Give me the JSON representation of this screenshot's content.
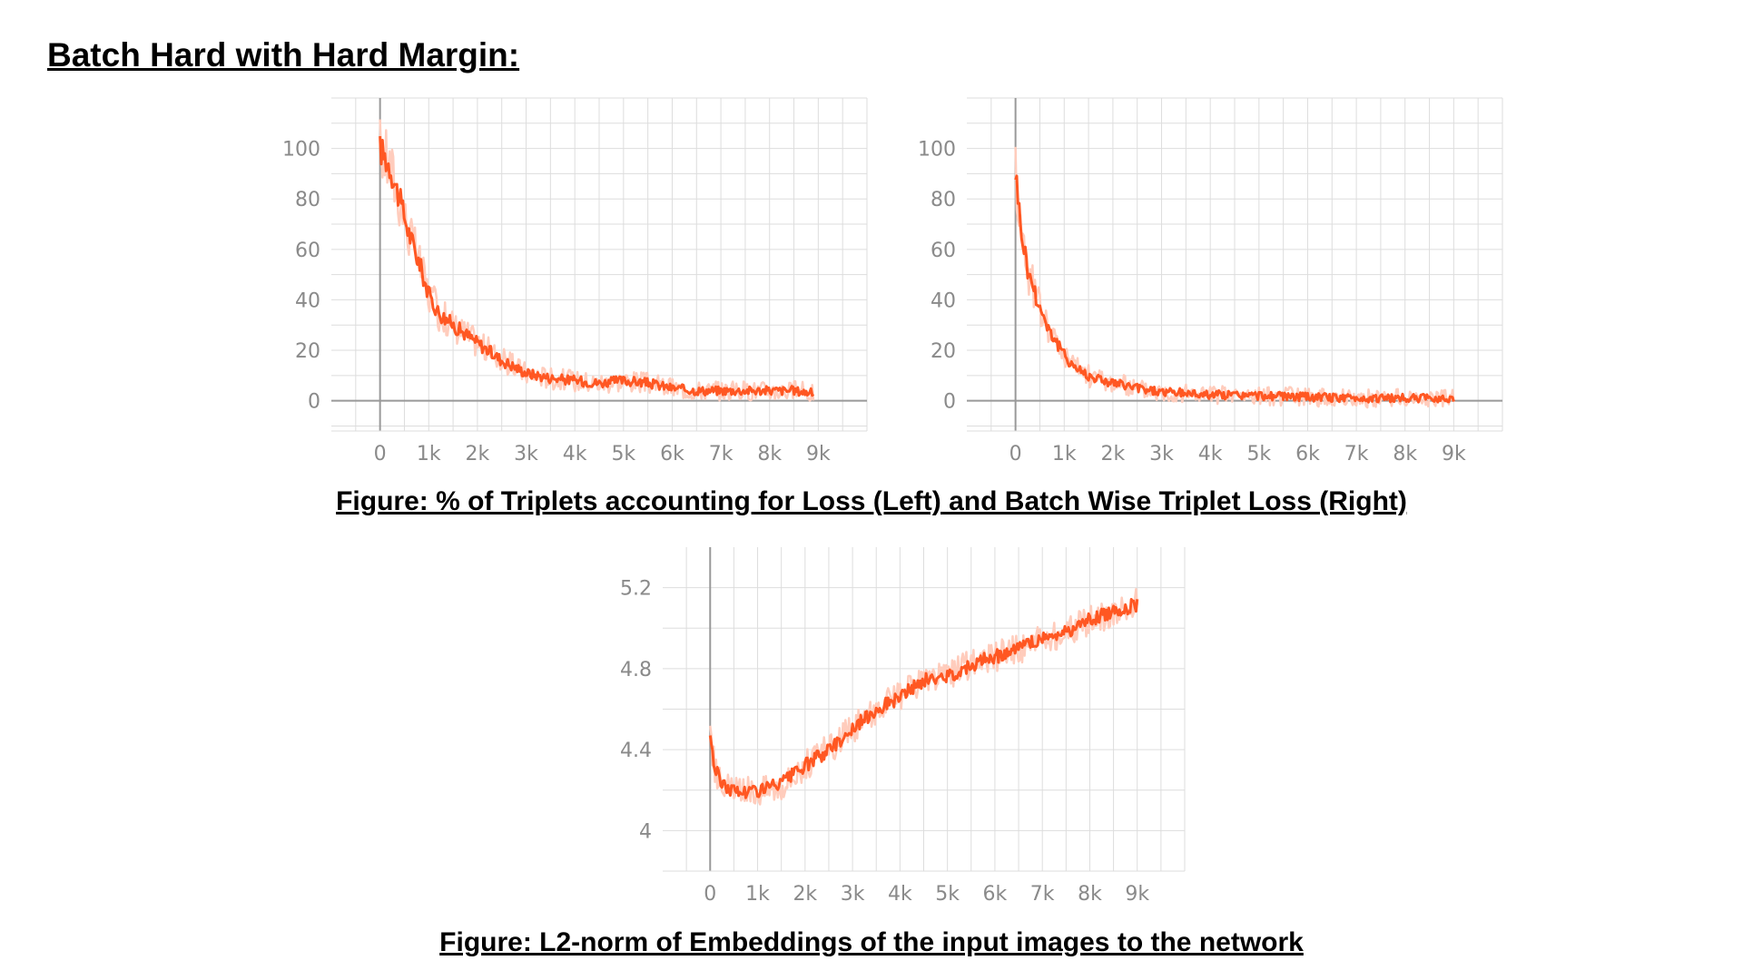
{
  "heading": "Batch Hard with Hard Margin:",
  "captions": {
    "top": "Figure: % of Triplets accounting for Loss (Left) and Batch Wise Triplet Loss (Right)",
    "bottom": "Figure: L2-norm of Embeddings of the input images to the network"
  },
  "colors": {
    "line": "#ff5722",
    "band": "#ffccbc",
    "grid": "#dddddd",
    "axis": "#999999",
    "tick_text": "#8a8a8a"
  },
  "chart_data": [
    {
      "type": "line",
      "title": "",
      "xlabel": "",
      "ylabel": "",
      "xlim": [
        -1000,
        10000
      ],
      "ylim": [
        -12,
        120
      ],
      "x_ticks": [
        0,
        1000,
        2000,
        3000,
        4000,
        5000,
        6000,
        7000,
        8000,
        9000
      ],
      "x_tick_labels": [
        "0",
        "1k",
        "2k",
        "3k",
        "4k",
        "5k",
        "6k",
        "7k",
        "8k",
        "9k"
      ],
      "y_ticks": [
        0,
        20,
        40,
        60,
        80,
        100
      ],
      "y_tick_labels": [
        "0",
        "20",
        "40",
        "60",
        "80",
        "100"
      ],
      "grid": true,
      "series": [
        {
          "x": [
            0,
            200,
            400,
            600,
            800,
            1000,
            1200,
            1500,
            2000,
            2500,
            3000,
            3500,
            4000,
            4500,
            5000,
            5500,
            6000,
            6500,
            7000,
            7500,
            8000,
            8500,
            8900
          ],
          "values": [
            100,
            93,
            80,
            66,
            55,
            42,
            35,
            30,
            23,
            16,
            11,
            9,
            8,
            7,
            8,
            7,
            5,
            4,
            4,
            4,
            4,
            4,
            3
          ]
        }
      ]
    },
    {
      "type": "line",
      "title": "",
      "xlabel": "",
      "ylabel": "",
      "xlim": [
        -1000,
        10000
      ],
      "ylim": [
        -12,
        120
      ],
      "x_ticks": [
        0,
        1000,
        2000,
        3000,
        4000,
        5000,
        6000,
        7000,
        8000,
        9000
      ],
      "x_tick_labels": [
        "0",
        "1k",
        "2k",
        "3k",
        "4k",
        "5k",
        "6k",
        "7k",
        "8k",
        "9k"
      ],
      "y_ticks": [
        0,
        20,
        40,
        60,
        80,
        100
      ],
      "y_tick_labels": [
        "0",
        "20",
        "40",
        "60",
        "80",
        "100"
      ],
      "grid": true,
      "series": [
        {
          "x": [
            0,
            100,
            250,
            500,
            750,
            1000,
            1250,
            1500,
            2000,
            2500,
            3000,
            3500,
            4000,
            5000,
            6000,
            7000,
            8000,
            9000
          ],
          "values": [
            92,
            70,
            52,
            37,
            26,
            18,
            13,
            10,
            7,
            5,
            3.5,
            3,
            2.5,
            2,
            1.5,
            1,
            1,
            1
          ]
        }
      ]
    },
    {
      "type": "line",
      "title": "",
      "xlabel": "",
      "ylabel": "",
      "xlim": [
        -1000,
        10000
      ],
      "ylim": [
        3.8,
        5.4
      ],
      "x_ticks": [
        0,
        1000,
        2000,
        3000,
        4000,
        5000,
        6000,
        7000,
        8000,
        9000
      ],
      "x_tick_labels": [
        "0",
        "1k",
        "2k",
        "3k",
        "4k",
        "5k",
        "6k",
        "7k",
        "8k",
        "9k"
      ],
      "y_ticks": [
        4,
        4.4,
        4.8,
        5.2
      ],
      "y_tick_labels": [
        "4",
        "4.4",
        "4.8",
        "5.2"
      ],
      "grid": true,
      "series": [
        {
          "x": [
            0,
            100,
            300,
            600,
            1000,
            1500,
            2000,
            2500,
            3000,
            3500,
            4000,
            4500,
            5000,
            5500,
            6000,
            6500,
            7000,
            7500,
            8000,
            8500,
            9000
          ],
          "values": [
            4.48,
            4.3,
            4.22,
            4.19,
            4.2,
            4.23,
            4.32,
            4.4,
            4.5,
            4.6,
            4.66,
            4.74,
            4.76,
            4.82,
            4.86,
            4.9,
            4.95,
            4.98,
            5.04,
            5.08,
            5.12
          ]
        }
      ]
    }
  ]
}
